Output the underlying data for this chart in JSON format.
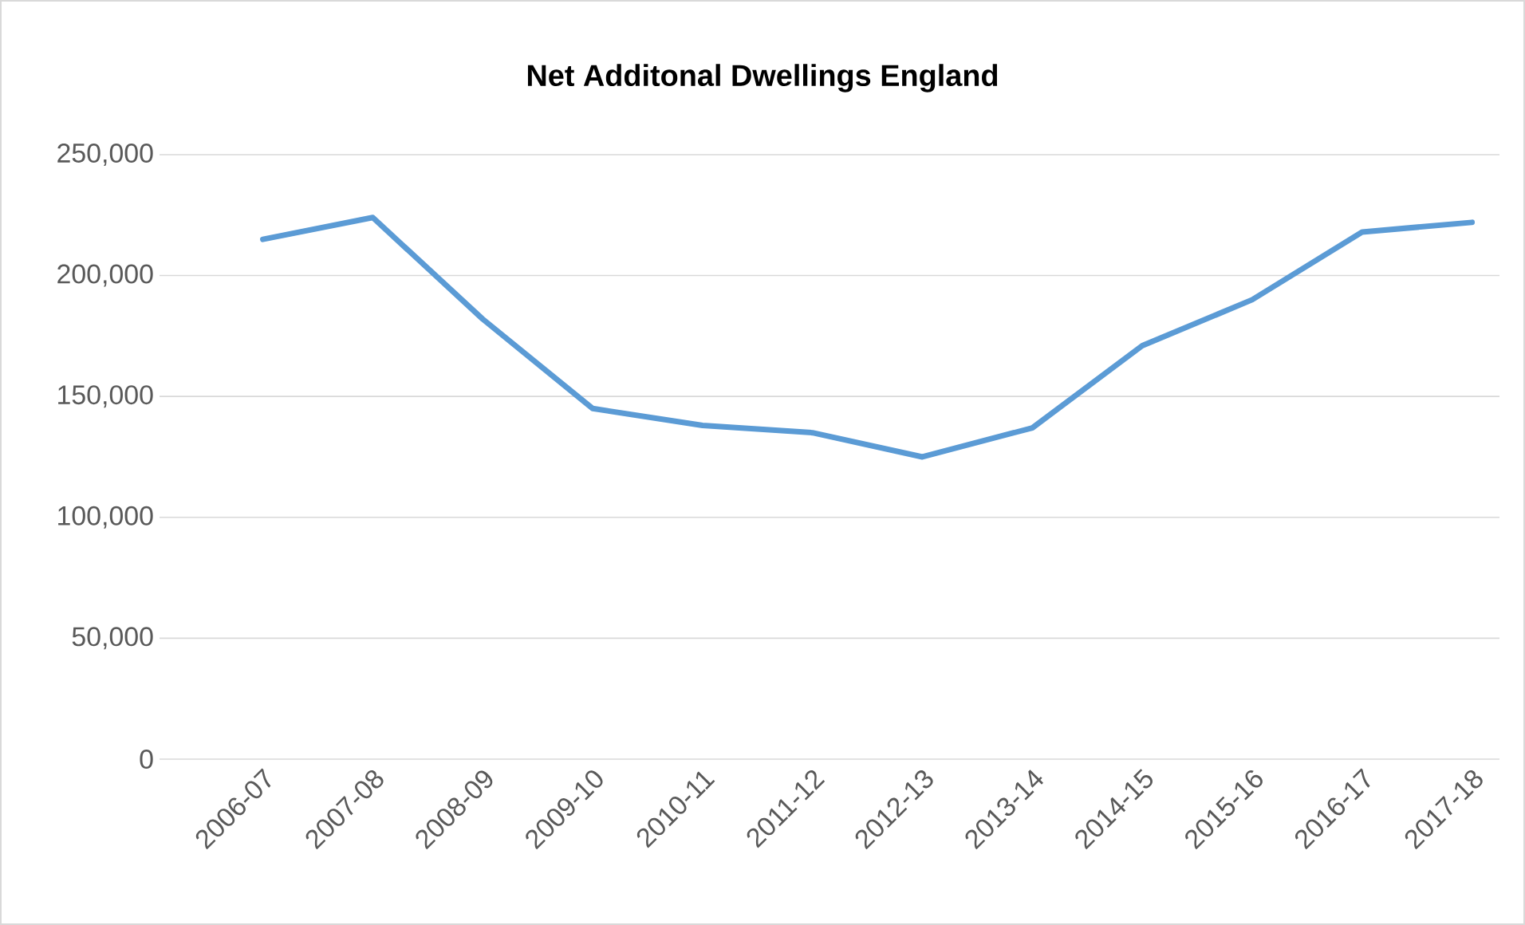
{
  "chart_data": {
    "type": "line",
    "title": "Net Additonal Dwellings England",
    "categories": [
      "2006-07",
      "2007-08",
      "2008-09",
      "2009-10",
      "2010-11",
      "2011-12",
      "2012-13",
      "2013-14",
      "2014-15",
      "2015-16",
      "2016-17",
      "2017-18"
    ],
    "series": [
      {
        "color": "#5b9bd5",
        "values": [
          215000,
          224000,
          182000,
          145000,
          138000,
          135000,
          125000,
          137000,
          171000,
          190000,
          218000,
          222000
        ]
      }
    ],
    "ylim": [
      0,
      250000
    ],
    "yticks": [
      {
        "value": 0,
        "label": "0"
      },
      {
        "value": 50000,
        "label": "50,000"
      },
      {
        "value": 100000,
        "label": "100,000"
      },
      {
        "value": 150000,
        "label": "150,000"
      },
      {
        "value": 200000,
        "label": "200,000"
      },
      {
        "value": 250000,
        "label": "250,000"
      }
    ],
    "grid": "y"
  }
}
